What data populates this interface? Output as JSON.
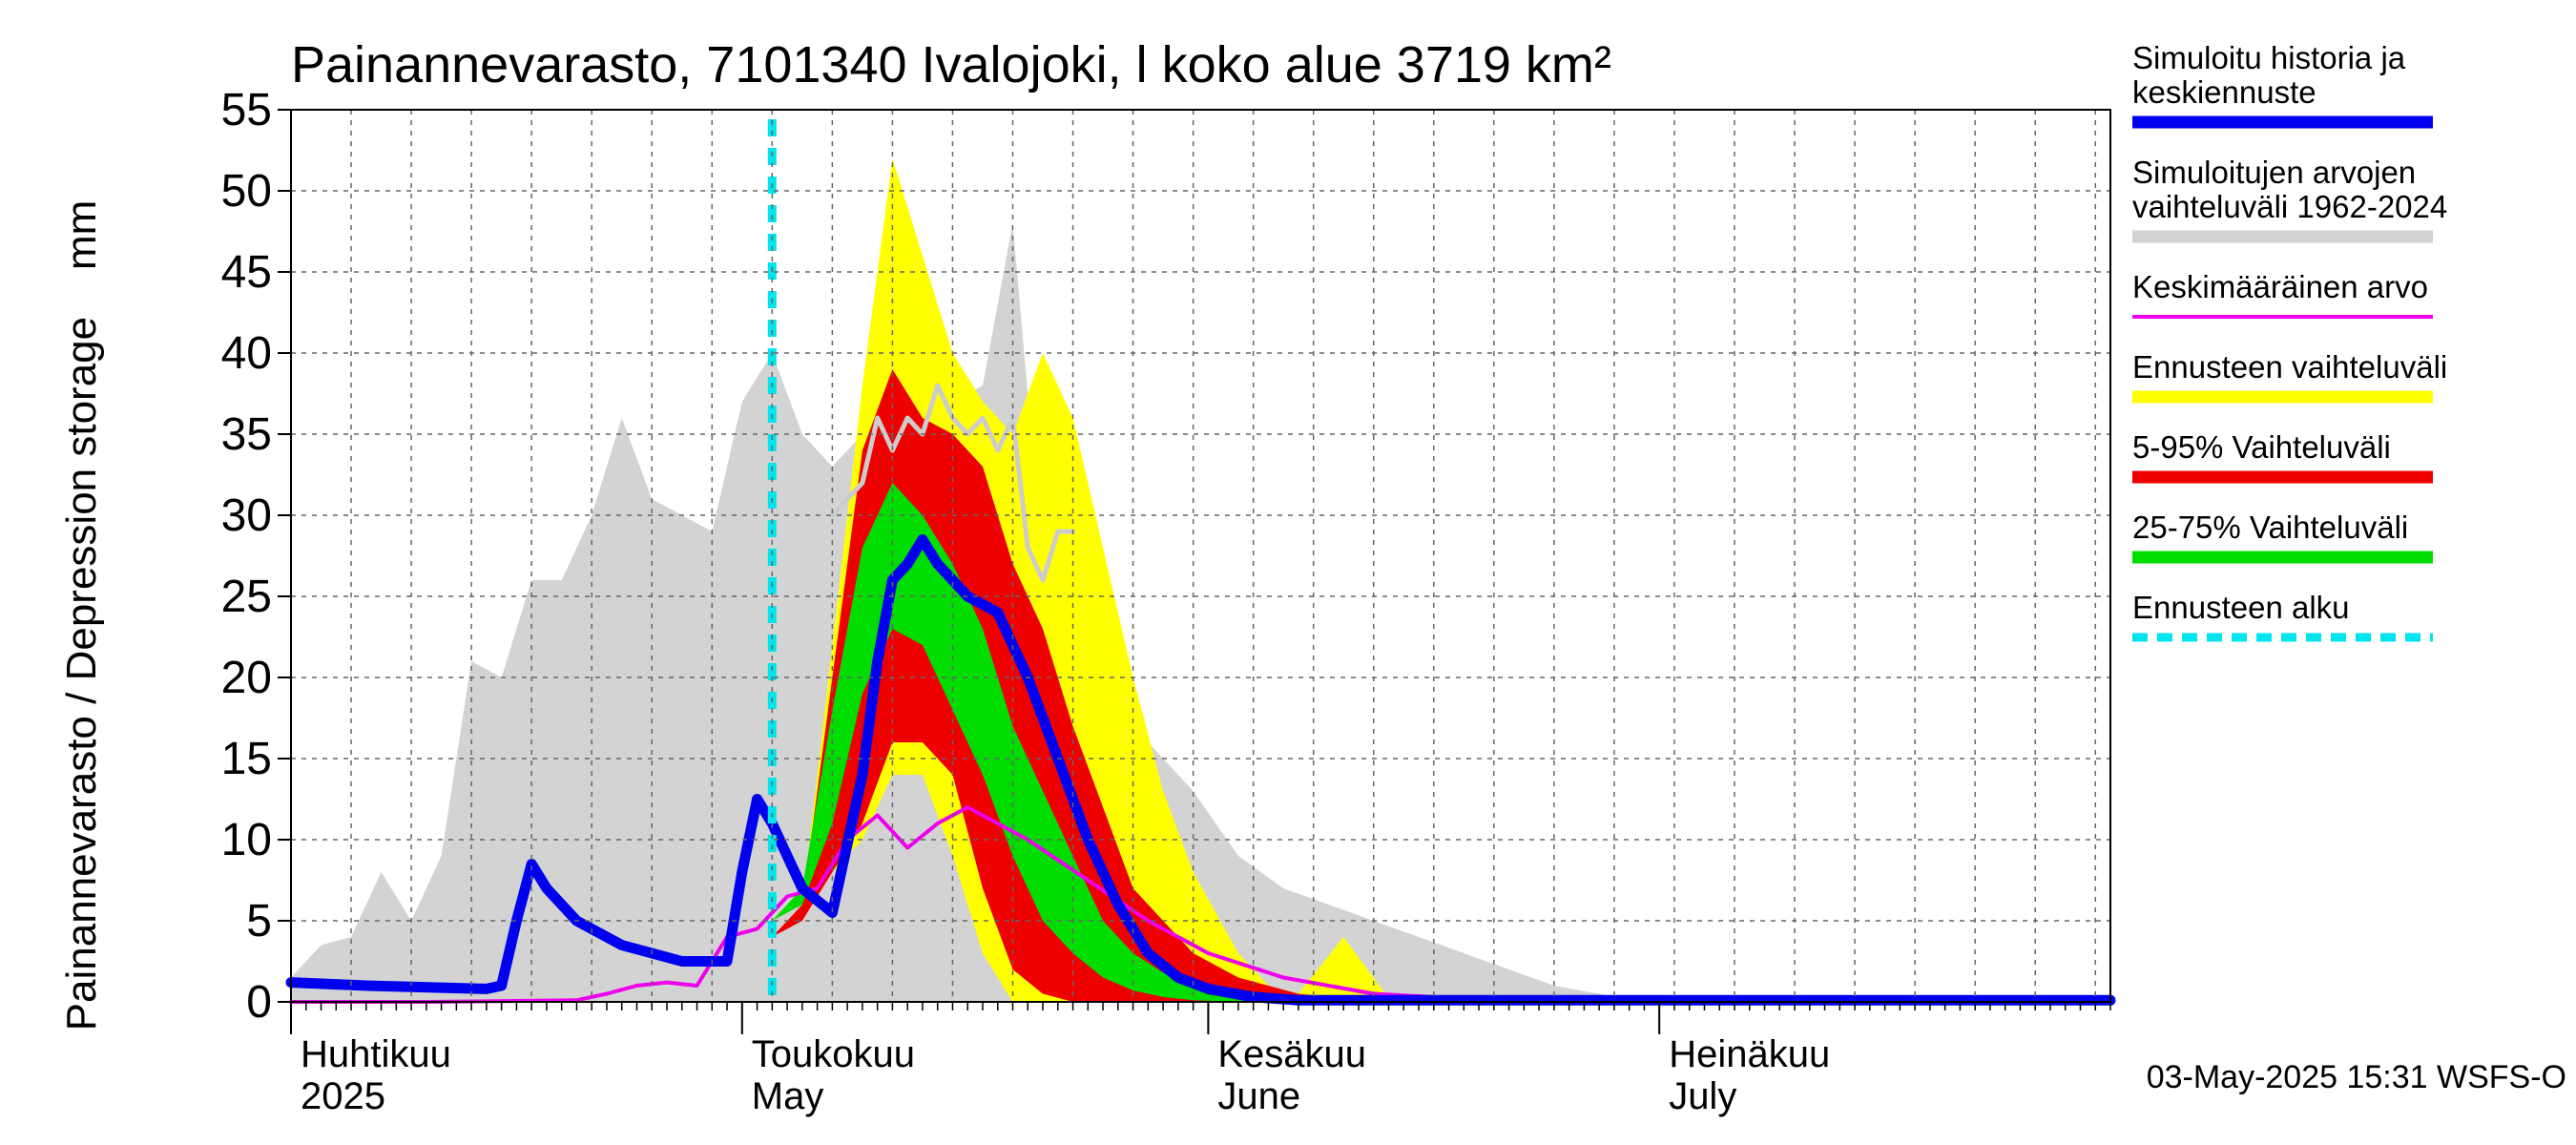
{
  "chart_data": {
    "type": "area",
    "title": "Painannevarasto, 7101340 Ivalojoki, l koko alue 3719 km²",
    "ylabel": "Painannevarasto / Depression storage    mm",
    "ylim": [
      0,
      55
    ],
    "yticks": [
      "0",
      "5",
      "10",
      "15",
      "20",
      "25",
      "30",
      "35",
      "40",
      "45",
      "50",
      "55"
    ],
    "xlim": [
      "2025-04-01",
      "2025-07-31"
    ],
    "months": [
      {
        "fi": "Huhtikuu",
        "en": "2025",
        "date": "2025-04-01"
      },
      {
        "fi": "Toukokuu",
        "en": "May",
        "date": "2025-05-01"
      },
      {
        "fi": "Kesäkuu",
        "en": "June",
        "date": "2025-06-01"
      },
      {
        "fi": "Heinäkuu",
        "en": "July",
        "date": "2025-07-01"
      }
    ],
    "forecast_start": "2025-05-03",
    "grid": true,
    "legend_position": "right",
    "footer": "03-May-2025 15:31 WSFS-O",
    "legend": [
      {
        "label": "Simuloitu historia ja keskiennuste",
        "lines": [
          "Simuloitu historia ja",
          "keskiennuste"
        ],
        "color": "#0000ee",
        "style": "thick"
      },
      {
        "label": "Simuloitujen arvojen vaihteluväli 1962-2024",
        "lines": [
          "Simuloitujen arvojen",
          "vaihteluväli 1962-2024"
        ],
        "color": "#d3d3d3",
        "style": "thick"
      },
      {
        "label": "Keskimääräinen arvo",
        "lines": [
          "Keskimääräinen arvo"
        ],
        "color": "#ee00ee",
        "style": "thin"
      },
      {
        "label": "Ennusteen vaihteluväli",
        "lines": [
          "Ennusteen vaihteluväli"
        ],
        "color": "#ffff00",
        "style": "thick"
      },
      {
        "label": "5-95% Vaihteluväli",
        "lines": [
          "5-95% Vaihteluväli"
        ],
        "color": "#ee0000",
        "style": "thick"
      },
      {
        "label": "25-75% Vaihteluväli",
        "lines": [
          "25-75% Vaihteluväli"
        ],
        "color": "#00dd00",
        "style": "thick"
      },
      {
        "label": "Ennusteen alku",
        "lines": [
          "Ennusteen alku"
        ],
        "color": "#00e5ee",
        "style": "dashed"
      }
    ],
    "series": {
      "history_range": {
        "color": "#d3d3d3",
        "x": [
          "2025-04-01",
          "2025-04-03",
          "2025-04-05",
          "2025-04-07",
          "2025-04-09",
          "2025-04-11",
          "2025-04-13",
          "2025-04-15",
          "2025-04-17",
          "2025-04-19",
          "2025-04-21",
          "2025-04-23",
          "2025-04-25",
          "2025-04-27",
          "2025-04-29",
          "2025-05-01",
          "2025-05-03",
          "2025-05-05",
          "2025-05-07",
          "2025-05-09",
          "2025-05-11",
          "2025-05-13",
          "2025-05-15",
          "2025-05-17",
          "2025-05-19",
          "2025-05-21",
          "2025-05-23",
          "2025-05-25",
          "2025-05-27",
          "2025-05-29",
          "2025-05-31",
          "2025-06-03",
          "2025-06-06",
          "2025-06-09",
          "2025-06-12",
          "2025-06-15",
          "2025-06-18",
          "2025-06-21",
          "2025-06-24",
          "2025-06-27",
          "2025-06-30"
        ],
        "low": [
          0,
          0,
          0,
          0,
          0,
          0,
          0,
          0,
          0,
          0,
          0,
          0,
          0,
          0,
          0,
          0,
          0,
          0,
          0,
          0,
          0,
          0,
          0,
          0,
          0,
          0,
          0,
          0,
          0,
          0,
          0,
          0,
          0,
          0,
          0,
          0,
          0,
          0,
          0,
          0,
          0
        ],
        "high": [
          1.5,
          3.5,
          4,
          8,
          5,
          9,
          21,
          20,
          26,
          26,
          30,
          36,
          31,
          30,
          29,
          37,
          40,
          35,
          33,
          35,
          37,
          38,
          37,
          38,
          48,
          27,
          24,
          26,
          17,
          15,
          13,
          9,
          7,
          6,
          5,
          4,
          3,
          2,
          1,
          0.5,
          0
        ]
      },
      "forecast_range": {
        "color": "#ffff00",
        "x": [
          "2025-05-03",
          "2025-05-05",
          "2025-05-07",
          "2025-05-09",
          "2025-05-11",
          "2025-05-13",
          "2025-05-15",
          "2025-05-17",
          "2025-05-19",
          "2025-05-21",
          "2025-05-23",
          "2025-05-25",
          "2025-05-27",
          "2025-05-29",
          "2025-05-31",
          "2025-06-03",
          "2025-06-05",
          "2025-06-07",
          "2025-06-10",
          "2025-06-13",
          "2025-06-16"
        ],
        "low": [
          4,
          6,
          8,
          10,
          14,
          14,
          9,
          3,
          0,
          0,
          0,
          0,
          0,
          0,
          0,
          0,
          0,
          0,
          0,
          0,
          0
        ],
        "high": [
          4,
          6,
          22,
          38,
          52,
          46,
          40,
          37,
          35,
          40,
          36,
          28,
          20,
          13,
          8,
          3,
          1,
          0.5,
          4,
          0.2,
          0
        ]
      },
      "p5_95": {
        "color": "#ee0000",
        "x": [
          "2025-05-03",
          "2025-05-05",
          "2025-05-07",
          "2025-05-09",
          "2025-05-11",
          "2025-05-13",
          "2025-05-15",
          "2025-05-17",
          "2025-05-19",
          "2025-05-21",
          "2025-05-23",
          "2025-05-25",
          "2025-05-27",
          "2025-05-29",
          "2025-05-31",
          "2025-06-03",
          "2025-06-05",
          "2025-06-07",
          "2025-06-10",
          "2025-06-13"
        ],
        "low": [
          4,
          5,
          8,
          11,
          16,
          16,
          14,
          7,
          2,
          0.5,
          0,
          0,
          0,
          0,
          0,
          0,
          0,
          0,
          0,
          0
        ],
        "high": [
          4,
          6,
          20,
          34,
          39,
          36,
          35,
          33,
          27,
          23,
          17,
          12,
          7,
          5,
          3,
          1.5,
          1,
          0.5,
          0.2,
          0
        ]
      },
      "p25_75": {
        "color": "#00dd00",
        "x": [
          "2025-05-03",
          "2025-05-05",
          "2025-05-07",
          "2025-05-09",
          "2025-05-11",
          "2025-05-13",
          "2025-05-15",
          "2025-05-17",
          "2025-05-19",
          "2025-05-21",
          "2025-05-23",
          "2025-05-25",
          "2025-05-27",
          "2025-05-29",
          "2025-05-31",
          "2025-06-03",
          "2025-06-05",
          "2025-06-07"
        ],
        "low": [
          5,
          6,
          11,
          19,
          23,
          22,
          18,
          14,
          9,
          5,
          3,
          1.5,
          0.7,
          0.3,
          0.1,
          0,
          0,
          0
        ],
        "high": [
          5,
          7,
          18,
          28,
          32,
          30,
          27,
          23,
          17,
          13,
          9,
          5,
          3,
          1.8,
          1,
          0.4,
          0.2,
          0
        ]
      },
      "grey_line": {
        "color": "#cccccc",
        "x": [
          "2025-05-07",
          "2025-05-09",
          "2025-05-10",
          "2025-05-11",
          "2025-05-12",
          "2025-05-13",
          "2025-05-14",
          "2025-05-15",
          "2025-05-16",
          "2025-05-17",
          "2025-05-18",
          "2025-05-19",
          "2025-05-20",
          "2025-05-21",
          "2025-05-22",
          "2025-05-23"
        ],
        "values": [
          30,
          32,
          36,
          34,
          36,
          35,
          38,
          36,
          35,
          36,
          34,
          36,
          28,
          26,
          29,
          29
        ]
      },
      "mean": {
        "color": "#ee00ee",
        "x": [
          "2025-04-01",
          "2025-04-10",
          "2025-04-20",
          "2025-04-22",
          "2025-04-24",
          "2025-04-26",
          "2025-04-28",
          "2025-04-30",
          "2025-05-02",
          "2025-05-04",
          "2025-05-06",
          "2025-05-08",
          "2025-05-10",
          "2025-05-12",
          "2025-05-14",
          "2025-05-16",
          "2025-05-18",
          "2025-05-20",
          "2025-05-24",
          "2025-05-28",
          "2025-06-01",
          "2025-06-06",
          "2025-06-12",
          "2025-06-18",
          "2025-07-31"
        ],
        "values": [
          0,
          0,
          0.1,
          0.5,
          1,
          1.2,
          1,
          4,
          4.5,
          6.5,
          7,
          10,
          11.5,
          9.5,
          11,
          12,
          11,
          10,
          7.5,
          5,
          3,
          1.5,
          0.5,
          0.2,
          0.1
        ]
      },
      "simulated": {
        "color": "#0000ee",
        "x": [
          "2025-04-01",
          "2025-04-06",
          "2025-04-14",
          "2025-04-15",
          "2025-04-16",
          "2025-04-17",
          "2025-04-18",
          "2025-04-20",
          "2025-04-23",
          "2025-04-27",
          "2025-04-30",
          "2025-05-01",
          "2025-05-02",
          "2025-05-03",
          "2025-05-05",
          "2025-05-07",
          "2025-05-09",
          "2025-05-10",
          "2025-05-11",
          "2025-05-12",
          "2025-05-13",
          "2025-05-14",
          "2025-05-15",
          "2025-05-16",
          "2025-05-18",
          "2025-05-20",
          "2025-05-22",
          "2025-05-24",
          "2025-05-26",
          "2025-05-28",
          "2025-05-30",
          "2025-06-01",
          "2025-06-04",
          "2025-06-07",
          "2025-06-10",
          "2025-07-31"
        ],
        "values": [
          1.2,
          1,
          0.8,
          1,
          5,
          8.5,
          7,
          5,
          3.5,
          2.5,
          2.5,
          8,
          12.5,
          11,
          7,
          5.5,
          14,
          21,
          26,
          27,
          28.5,
          27,
          26,
          25,
          24,
          20,
          15,
          10,
          6,
          3,
          1.5,
          0.8,
          0.3,
          0.1,
          0.1,
          0.1
        ]
      }
    }
  }
}
